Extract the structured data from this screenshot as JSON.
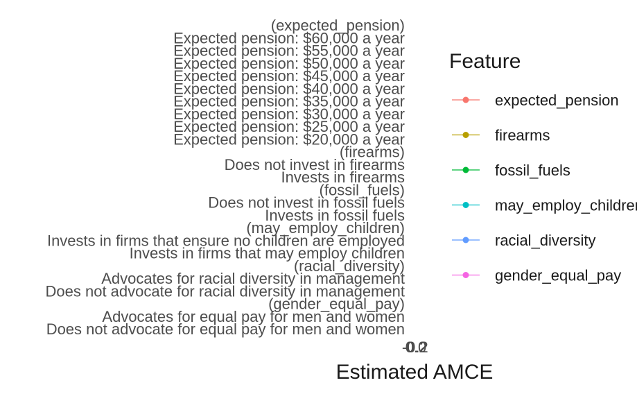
{
  "chart_data": {
    "type": "scatter",
    "xlabel": "Estimated AMCE",
    "x_ticks": [
      "-0.2",
      "0.0",
      "0.2"
    ],
    "y_labels": [
      "(expected_pension)",
      "Expected pension: $60,000 a year",
      "Expected pension: $55,000 a year",
      "Expected pension: $50,000 a year",
      "Expected pension: $45,000 a year",
      "Expected pension: $40,000 a year",
      "Expected pension: $35,000 a year",
      "Expected pension: $30,000 a year",
      "Expected pension: $25,000 a year",
      "Expected pension: $20,000 a year",
      "(firearms)",
      "Does not invest in firearms",
      "Invests in firearms",
      "(fossil_fuels)",
      "Does not invest in fossil fuels",
      "Invests in fossil fuels",
      "(may_employ_children)",
      "Invests in firms that ensure no children are employed",
      "Invests in firms that may employ children",
      "(racial_diversity)",
      "Advocates for racial diversity in management",
      "Does not advocate for racial diversity in management",
      "(gender_equal_pay)",
      "Advocates for equal pay for men and women",
      "Does not advocate for equal pay for men and women"
    ],
    "legend": {
      "title": "Feature",
      "placement": "right",
      "entries": [
        {
          "name": "expected_pension",
          "color": "#F8766D"
        },
        {
          "name": "firearms",
          "color": "#B79F00"
        },
        {
          "name": "fossil_fuels",
          "color": "#00BA38"
        },
        {
          "name": "may_employ_children",
          "color": "#00BFC4"
        },
        {
          "name": "racial_diversity",
          "color": "#619CFF"
        },
        {
          "name": "gender_equal_pay",
          "color": "#F564E3"
        }
      ]
    },
    "grid": false
  }
}
